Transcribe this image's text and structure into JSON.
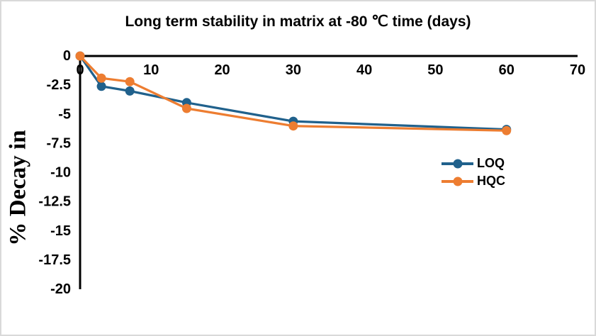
{
  "window": {
    "background": "#ffffff",
    "border_color": "#d9d9d9"
  },
  "chart_data": {
    "type": "line",
    "title": "Long term stability in matrix at -80 ℃ time (days)",
    "ylabel": "% Decay in",
    "xlabel": "",
    "x": [
      0,
      3,
      7,
      15,
      30,
      60
    ],
    "series": [
      {
        "name": "LOQ",
        "color": "#20618C",
        "marker": "circle",
        "values": [
          0,
          -2.6,
          -3.0,
          -4.0,
          -5.6,
          -6.3
        ]
      },
      {
        "name": "HQC",
        "color": "#ED7D31",
        "marker": "circle",
        "values": [
          0,
          -1.9,
          -2.2,
          -4.5,
          -6.0,
          -6.4
        ]
      }
    ],
    "xlim": [
      0,
      70
    ],
    "ylim": [
      -20,
      0
    ],
    "x_ticks": [
      0,
      10,
      20,
      30,
      40,
      50,
      60,
      70
    ],
    "y_ticks": [
      0,
      -2.5,
      -5,
      -7.5,
      -10,
      -12.5,
      -15,
      -17.5,
      -20
    ],
    "grid": false,
    "legend_position": "center-right",
    "axis_color": "#000000",
    "text_color": "#000000"
  }
}
